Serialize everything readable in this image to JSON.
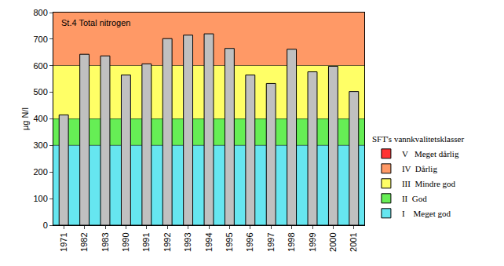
{
  "chart_data": {
    "type": "bar",
    "title": "St.4 Total nitrogen",
    "y_label": "µg N/l",
    "categories": [
      "1971",
      "1982",
      "1983",
      "1990",
      "1991",
      "1992",
      "1993",
      "1994",
      "1995",
      "1996",
      "1997",
      "1998",
      "1999",
      "2000",
      "2001"
    ],
    "values": [
      415,
      643,
      637,
      565,
      607,
      702,
      715,
      720,
      665,
      565,
      533,
      662,
      577,
      598,
      503
    ],
    "color": "#c0c0c0",
    "ylim": [
      0,
      800
    ],
    "yticks": [
      0,
      100,
      200,
      300,
      400,
      500,
      600,
      700,
      800
    ],
    "grid": false,
    "legend": "right",
    "legend_title": "SFT's vannkvalitetsklasser",
    "classes": [
      {
        "name": "V   Meget dårlig",
        "color": "#ff3333"
      },
      {
        "name": "IV  Dårlig",
        "color": "#ff9966",
        "lower": 600,
        "upper": 800
      },
      {
        "name": "III  Mindre god",
        "color": "#ffff66",
        "lower": 400,
        "upper": 600
      },
      {
        "name": "II  God",
        "color": "#66ee55",
        "lower": 300,
        "upper": 400
      },
      {
        "name": "I    Meget god",
        "color": "#66e6f0",
        "lower": 0,
        "upper": 300
      }
    ]
  }
}
